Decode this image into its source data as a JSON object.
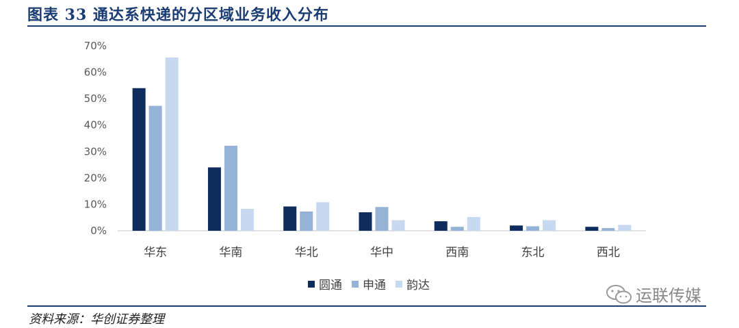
{
  "header": {
    "title": "图表 33  通达系快递的分区域业务收入分布"
  },
  "source": "资料来源：华创证券整理",
  "watermark": "运联传媒",
  "colors": {
    "accent": "#1b3c73",
    "series": [
      "#0e2d5e",
      "#95b3d7",
      "#c6d9f1"
    ]
  },
  "chart_data": {
    "type": "bar",
    "title": "",
    "xlabel": "",
    "ylabel": "",
    "ylim": [
      0,
      70
    ],
    "yticks": [
      "0%",
      "10%",
      "20%",
      "30%",
      "40%",
      "50%",
      "60%",
      "70%"
    ],
    "categories": [
      "华东",
      "华南",
      "华北",
      "华中",
      "西南",
      "东北",
      "西北"
    ],
    "series": [
      {
        "name": "圆通",
        "values": [
          54.0,
          24.0,
          9.2,
          7.0,
          3.6,
          2.0,
          1.5
        ]
      },
      {
        "name": "申通",
        "values": [
          47.3,
          32.2,
          7.3,
          9.0,
          1.5,
          1.7,
          1.0
        ]
      },
      {
        "name": "韵达",
        "values": [
          65.6,
          8.3,
          10.8,
          4.0,
          5.2,
          4.0,
          2.2
        ]
      }
    ],
    "grid": false,
    "legend": "bottom"
  }
}
